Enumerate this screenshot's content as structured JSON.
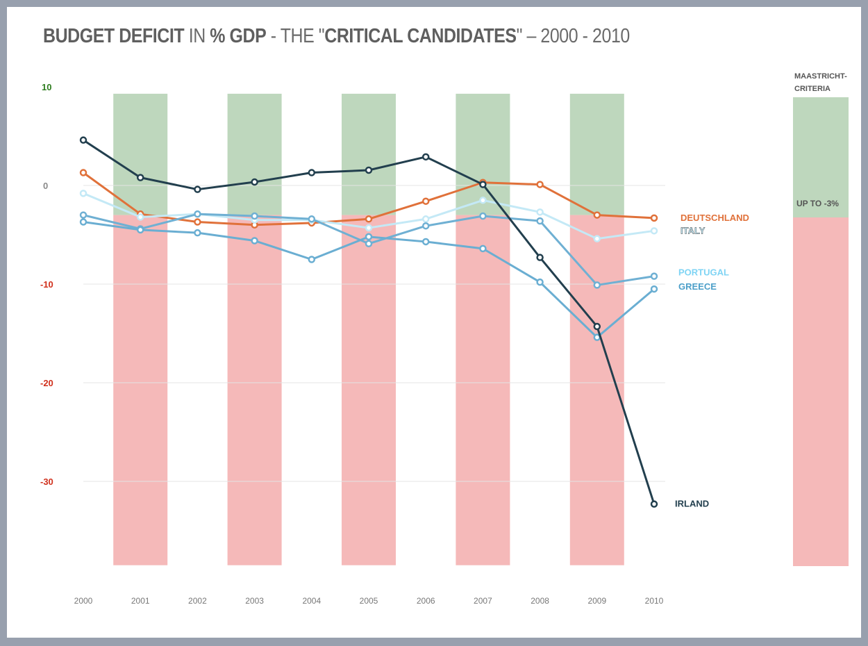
{
  "chart_data": {
    "type": "line",
    "title": {
      "part1": "BUDGET DEFICIT",
      "part2": " IN ",
      "part3": "% GDP",
      "part4": " - THE \"",
      "part5": "CRITICAL CANDIDATES",
      "part6": "\" – 2000 - 2010"
    },
    "x": [
      "2000",
      "2001",
      "2002",
      "2003",
      "2004",
      "2005",
      "2006",
      "2007",
      "2008",
      "2009",
      "2010"
    ],
    "yticks": [
      {
        "v": 10,
        "label": "10",
        "color": "#2e7d1f"
      },
      {
        "v": 0,
        "label": "0",
        "color": "#8a8a8a"
      },
      {
        "v": -10,
        "label": "-10",
        "color": "#d0301c"
      },
      {
        "v": -20,
        "label": "-20",
        "color": "#d0301c"
      },
      {
        "v": -30,
        "label": "-30",
        "color": "#d0301c"
      }
    ],
    "ylim": [
      -38.5,
      9.3
    ],
    "threshold": -3,
    "band_years": [
      "2001",
      "2003",
      "2005",
      "2007",
      "2009"
    ],
    "colors": {
      "good": "#bed7bd",
      "bad": "#f5b9b9"
    },
    "series": [
      {
        "name": "DEUTSCHLAND",
        "color": "#e0713a",
        "values": [
          1.3,
          -2.9,
          -3.7,
          -4.0,
          -3.8,
          -3.4,
          -1.6,
          0.3,
          0.1,
          -3.0,
          -3.3
        ]
      },
      {
        "name": "ITALY",
        "color": "#c4e9f6",
        "values": [
          -0.8,
          -3.2,
          -2.9,
          -3.5,
          -3.5,
          -4.3,
          -3.4,
          -1.5,
          -2.7,
          -5.4,
          -4.6
        ]
      },
      {
        "name": "PORTUGAL",
        "color": "#6fb0d3",
        "labelColor": "#7fd4f4",
        "values": [
          -3.0,
          -4.4,
          -2.9,
          -3.1,
          -3.4,
          -5.9,
          -4.1,
          -3.1,
          -3.6,
          -10.1,
          -9.2
        ]
      },
      {
        "name": "GREECE",
        "color": "#6aaed2",
        "labelColor": "#4c9fc9",
        "values": [
          -3.7,
          -4.5,
          -4.8,
          -5.6,
          -7.5,
          -5.2,
          -5.7,
          -6.4,
          -9.8,
          -15.4,
          -10.5
        ]
      },
      {
        "name": "IRLAND",
        "color": "#223f4e",
        "values": [
          4.6,
          0.8,
          -0.4,
          0.35,
          1.3,
          1.55,
          2.9,
          0.1,
          -7.3,
          -14.3,
          -32.3
        ]
      }
    ],
    "legend": {
      "title1": "MAASTRICHT-",
      "title2": "CRITERIA",
      "label": "UP TO -3%"
    }
  }
}
